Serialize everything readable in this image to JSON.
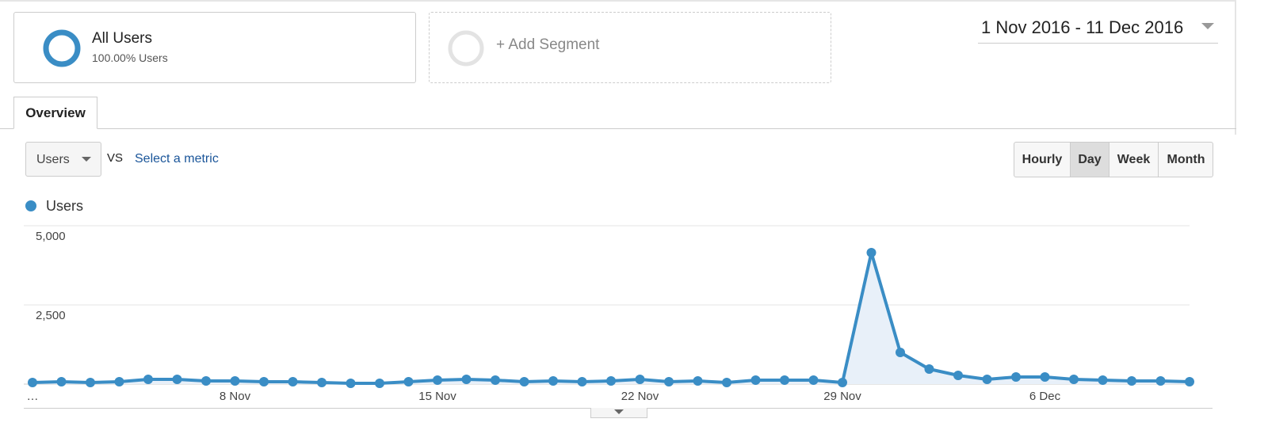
{
  "segments": {
    "active": {
      "title": "All Users",
      "subtitle": "100.00% Users"
    },
    "add": "+ Add Segment"
  },
  "date_range": "1 Nov 2016 - 11 Dec 2016",
  "tab": "Overview",
  "metric": {
    "selected": "Users",
    "vs": "VS",
    "select": "Select a metric"
  },
  "granularity": [
    "Hourly",
    "Day",
    "Week",
    "Month"
  ],
  "chart_data": {
    "type": "line",
    "categories": [
      "…",
      null,
      null,
      null,
      null,
      null,
      null,
      "8 Nov",
      null,
      null,
      null,
      null,
      null,
      null,
      "15 Nov",
      null,
      null,
      null,
      null,
      null,
      null,
      "22 Nov",
      null,
      null,
      null,
      null,
      null,
      null,
      "29 Nov",
      null,
      null,
      null,
      null,
      null,
      null,
      "6 Dec",
      null,
      null,
      null,
      null,
      null
    ],
    "series": [
      {
        "name": "Users",
        "color": "#3a8dc5",
        "values": [
          50,
          75,
          50,
          75,
          150,
          150,
          100,
          100,
          75,
          75,
          50,
          25,
          25,
          75,
          125,
          150,
          125,
          75,
          100,
          75,
          100,
          150,
          75,
          100,
          50,
          125,
          125,
          125,
          50,
          4150,
          1000,
          475,
          275,
          150,
          225,
          225,
          150,
          125,
          100,
          100,
          75
        ]
      }
    ],
    "ylim": [
      0,
      5000
    ],
    "yticks": [
      {
        "value": 2500,
        "label": "2,500"
      },
      {
        "value": 5000,
        "label": "5,000"
      }
    ],
    "grid": true,
    "area": true
  }
}
